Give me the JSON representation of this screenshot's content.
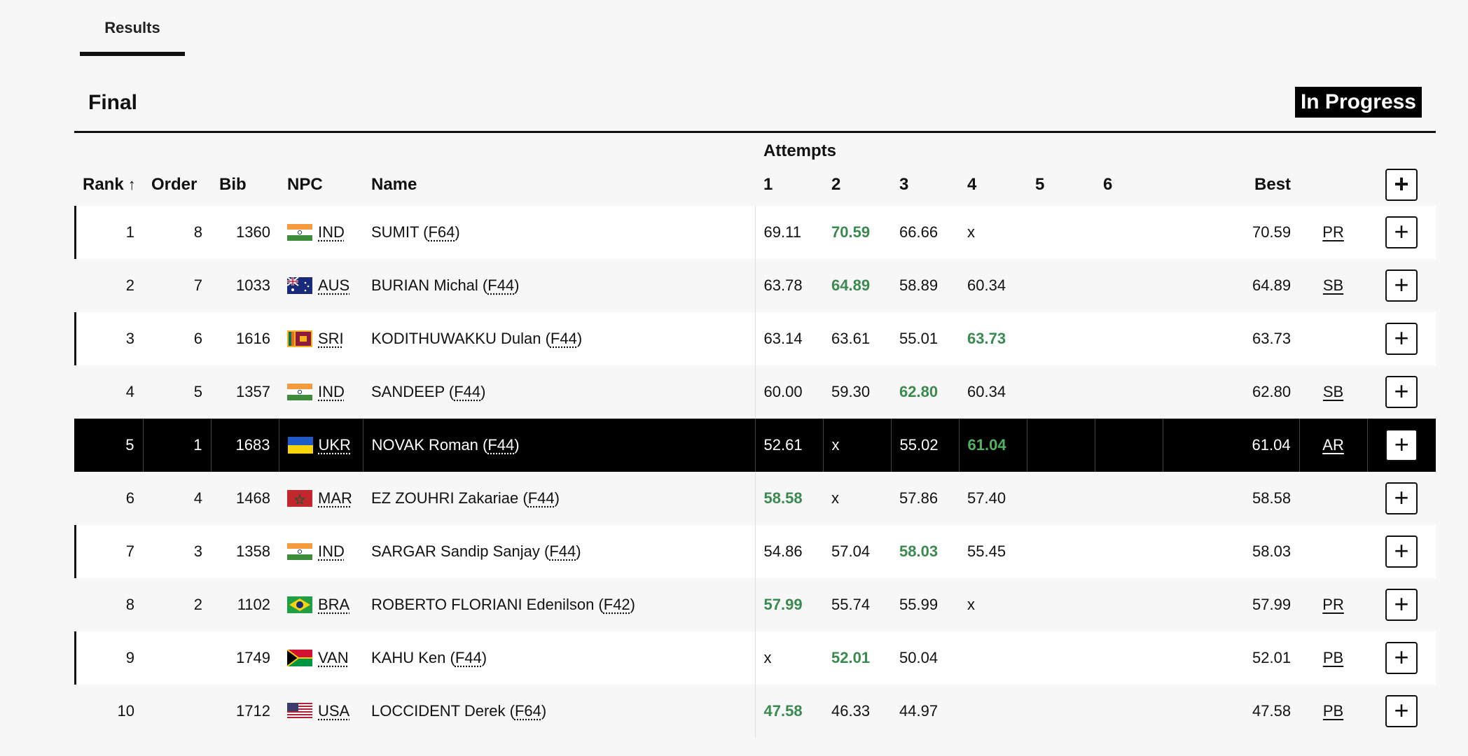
{
  "tabs": [
    {
      "label": "Results"
    }
  ],
  "header": {
    "title": "Final",
    "status": "In Progress"
  },
  "columns": {
    "rank": "Rank",
    "order": "Order",
    "bib": "Bib",
    "npc": "NPC",
    "name": "Name",
    "attempts_group": "Attempts",
    "attempts": [
      "1",
      "2",
      "3",
      "4",
      "5",
      "6"
    ],
    "best": "Best"
  },
  "icons": {
    "sort": "arrow-up-icon",
    "expand": "plus-icon"
  },
  "colors": {
    "personal_best_attempt": "#3a8a4f",
    "highlight_row": "#000000"
  },
  "rows": [
    {
      "rank": "1",
      "order": "8",
      "bib": "1360",
      "npc": "IND",
      "name": "SUMIT (",
      "cls": "F64",
      "a": [
        "69.11",
        "70.59",
        "66.66",
        "x",
        "",
        ""
      ],
      "best_idx": 1,
      "best": "70.59",
      "record": "PR"
    },
    {
      "rank": "2",
      "order": "7",
      "bib": "1033",
      "npc": "AUS",
      "name": "BURIAN Michal (",
      "cls": "F44",
      "a": [
        "63.78",
        "64.89",
        "58.89",
        "60.34",
        "",
        ""
      ],
      "best_idx": 1,
      "best": "64.89",
      "record": "SB"
    },
    {
      "rank": "3",
      "order": "6",
      "bib": "1616",
      "npc": "SRI",
      "name": "KODITHUWAKKU Dulan (",
      "cls": "F44",
      "a": [
        "63.14",
        "63.61",
        "55.01",
        "63.73",
        "",
        ""
      ],
      "best_idx": 3,
      "best": "63.73",
      "record": ""
    },
    {
      "rank": "4",
      "order": "5",
      "bib": "1357",
      "npc": "IND",
      "name": "SANDEEP (",
      "cls": "F44",
      "a": [
        "60.00",
        "59.30",
        "62.80",
        "60.34",
        "",
        ""
      ],
      "best_idx": 2,
      "best": "62.80",
      "record": "SB"
    },
    {
      "rank": "5",
      "order": "1",
      "bib": "1683",
      "npc": "UKR",
      "name": "NOVAK Roman (",
      "cls": "F44",
      "a": [
        "52.61",
        "x",
        "55.02",
        "61.04",
        "",
        ""
      ],
      "best_idx": 3,
      "best": "61.04",
      "record": "AR"
    },
    {
      "rank": "6",
      "order": "4",
      "bib": "1468",
      "npc": "MAR",
      "name": "EZ ZOUHRI Zakariae (",
      "cls": "F44",
      "a": [
        "58.58",
        "x",
        "57.86",
        "57.40",
        "",
        ""
      ],
      "best_idx": 0,
      "best": "58.58",
      "record": ""
    },
    {
      "rank": "7",
      "order": "3",
      "bib": "1358",
      "npc": "IND",
      "name": "SARGAR Sandip Sanjay (",
      "cls": "F44",
      "a": [
        "54.86",
        "57.04",
        "58.03",
        "55.45",
        "",
        ""
      ],
      "best_idx": 2,
      "best": "58.03",
      "record": ""
    },
    {
      "rank": "8",
      "order": "2",
      "bib": "1102",
      "npc": "BRA",
      "name": "ROBERTO FLORIANI Edenilson (",
      "cls": "F42",
      "a": [
        "57.99",
        "55.74",
        "55.99",
        "x",
        "",
        ""
      ],
      "best_idx": 0,
      "best": "57.99",
      "record": "PR"
    },
    {
      "rank": "9",
      "order": "",
      "bib": "1749",
      "npc": "VAN",
      "name": "KAHU Ken (",
      "cls": "F44",
      "a": [
        "x",
        "52.01",
        "50.04",
        "",
        "",
        ""
      ],
      "best_idx": 1,
      "best": "52.01",
      "record": "PB"
    },
    {
      "rank": "10",
      "order": "",
      "bib": "1712",
      "npc": "USA",
      "name": "LOCCIDENT Derek (",
      "cls": "F64",
      "a": [
        "47.58",
        "46.33",
        "44.97",
        "",
        "",
        ""
      ],
      "best_idx": 0,
      "best": "47.58",
      "record": "PB"
    }
  ]
}
